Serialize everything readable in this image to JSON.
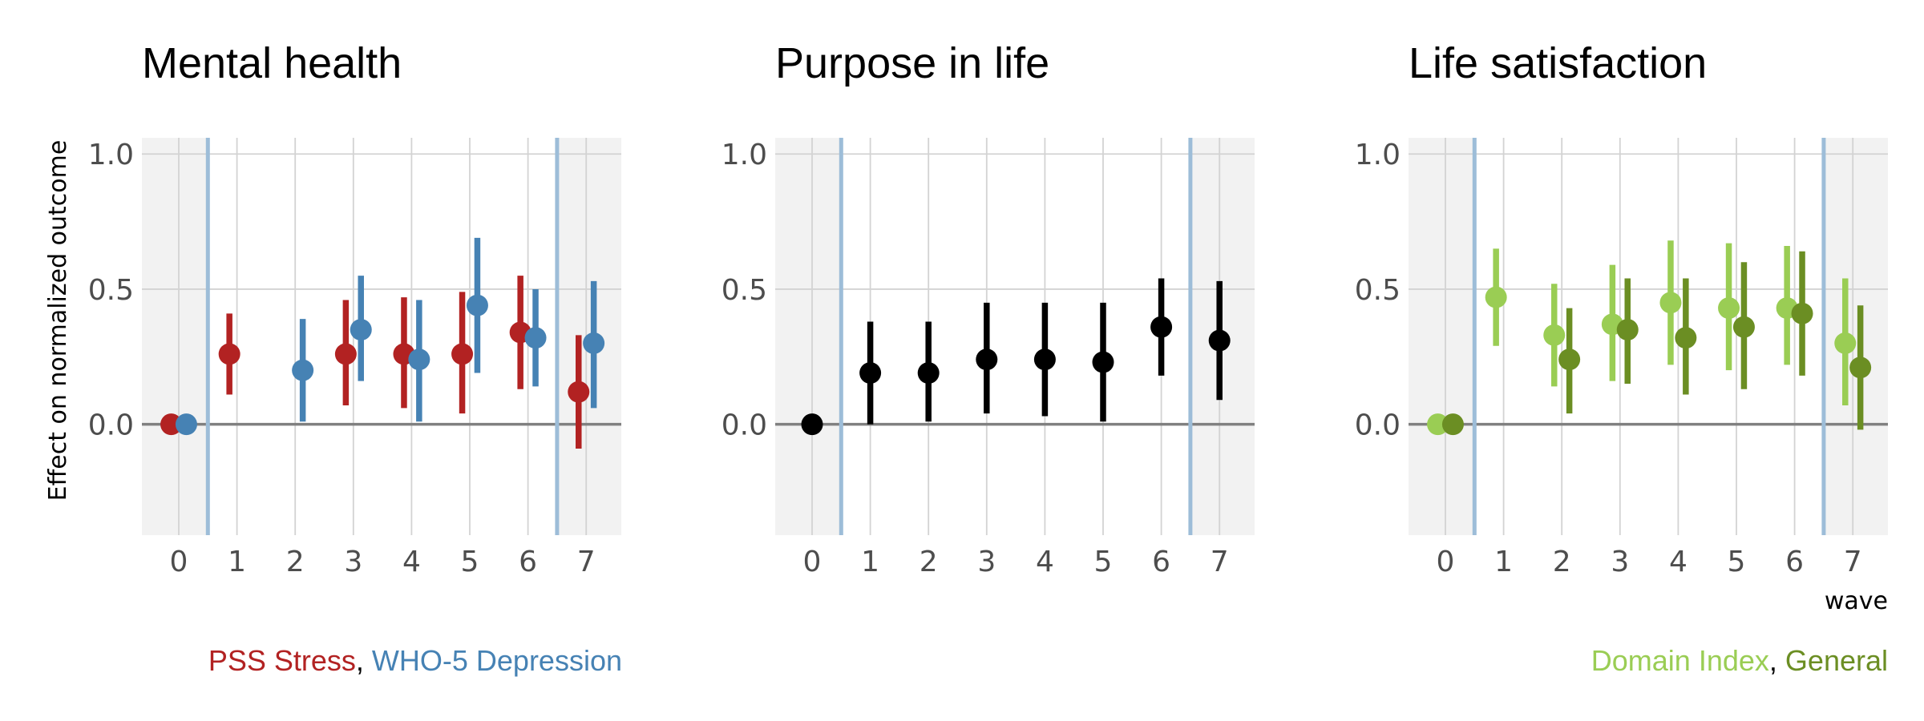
{
  "chart_data": [
    {
      "type": "scatter",
      "title": "Mental health",
      "ylabel": "Effect on normalized outcome",
      "xlabel": "",
      "x": [
        0,
        1,
        2,
        3,
        4,
        5,
        6,
        7
      ],
      "ylim": [
        -0.41,
        1.06
      ],
      "yticks": [
        0.0,
        0.5,
        1.0
      ],
      "ytick_labels": [
        "0.0",
        "0.5",
        "1.0"
      ],
      "grid": true,
      "treatment_window": [
        0.5,
        6.5
      ],
      "legend": {
        "position": "bottom",
        "items": [
          {
            "text": "PSS Stress",
            "color": "#B22222"
          },
          {
            "text": ", ",
            "color": "#000000"
          },
          {
            "text": "WHO-5 Depression",
            "color": "#4682B4"
          }
        ]
      },
      "series": [
        {
          "color": "#B22222",
          "dodge": -0.13,
          "points": [
            {
              "x": 0,
              "y": 0.0
            },
            {
              "x": 1,
              "y": 0.26,
              "lo": 0.11,
              "hi": 0.41
            },
            {
              "x": 3,
              "y": 0.26,
              "lo": 0.07,
              "hi": 0.46
            },
            {
              "x": 4,
              "y": 0.26,
              "lo": 0.06,
              "hi": 0.47
            },
            {
              "x": 5,
              "y": 0.26,
              "lo": 0.04,
              "hi": 0.49
            },
            {
              "x": 6,
              "y": 0.34,
              "lo": 0.13,
              "hi": 0.55
            },
            {
              "x": 7,
              "y": 0.12,
              "lo": -0.09,
              "hi": 0.33
            }
          ]
        },
        {
          "color": "#4682B4",
          "dodge": 0.13,
          "points": [
            {
              "x": 0,
              "y": 0.0
            },
            {
              "x": 2,
              "y": 0.2,
              "lo": 0.01,
              "hi": 0.39
            },
            {
              "x": 3,
              "y": 0.35,
              "lo": 0.16,
              "hi": 0.55
            },
            {
              "x": 4,
              "y": 0.24,
              "lo": 0.01,
              "hi": 0.46
            },
            {
              "x": 5,
              "y": 0.44,
              "lo": 0.19,
              "hi": 0.69
            },
            {
              "x": 6,
              "y": 0.32,
              "lo": 0.14,
              "hi": 0.5
            },
            {
              "x": 7,
              "y": 0.3,
              "lo": 0.06,
              "hi": 0.53
            }
          ]
        }
      ]
    },
    {
      "type": "scatter",
      "title": "Purpose in life",
      "ylabel": "",
      "xlabel": "",
      "x": [
        0,
        1,
        2,
        3,
        4,
        5,
        6,
        7
      ],
      "ylim": [
        -0.41,
        1.06
      ],
      "yticks": [
        0.0,
        0.5,
        1.0
      ],
      "ytick_labels": [
        "0.0",
        "0.5",
        "1.0"
      ],
      "grid": true,
      "treatment_window": [
        0.5,
        6.5
      ],
      "series": [
        {
          "color": "#000000",
          "dodge": 0.0,
          "points": [
            {
              "x": 0,
              "y": 0.0
            },
            {
              "x": 1,
              "y": 0.19,
              "lo": 0.0,
              "hi": 0.38
            },
            {
              "x": 2,
              "y": 0.19,
              "lo": 0.01,
              "hi": 0.38
            },
            {
              "x": 3,
              "y": 0.24,
              "lo": 0.04,
              "hi": 0.45
            },
            {
              "x": 4,
              "y": 0.24,
              "lo": 0.03,
              "hi": 0.45
            },
            {
              "x": 5,
              "y": 0.23,
              "lo": 0.01,
              "hi": 0.45
            },
            {
              "x": 6,
              "y": 0.36,
              "lo": 0.18,
              "hi": 0.54
            },
            {
              "x": 7,
              "y": 0.31,
              "lo": 0.09,
              "hi": 0.53
            }
          ]
        }
      ]
    },
    {
      "type": "scatter",
      "title": "Life satisfaction",
      "ylabel": "",
      "xlabel": "wave",
      "x": [
        0,
        1,
        2,
        3,
        4,
        5,
        6,
        7
      ],
      "ylim": [
        -0.41,
        1.06
      ],
      "yticks": [
        0.0,
        0.5,
        1.0
      ],
      "ytick_labels": [
        "0.0",
        "0.5",
        "1.0"
      ],
      "grid": true,
      "treatment_window": [
        0.5,
        6.5
      ],
      "legend": {
        "position": "bottom-right",
        "items": [
          {
            "text": "Domain Index",
            "color": "#9ACD54"
          },
          {
            "text": ", ",
            "color": "#000000"
          },
          {
            "text": "General",
            "color": "#6B8E23"
          }
        ]
      },
      "series": [
        {
          "color": "#9ACD54",
          "dodge": -0.13,
          "points": [
            {
              "x": 0,
              "y": 0.0
            },
            {
              "x": 1,
              "y": 0.47,
              "lo": 0.29,
              "hi": 0.65
            },
            {
              "x": 2,
              "y": 0.33,
              "lo": 0.14,
              "hi": 0.52
            },
            {
              "x": 3,
              "y": 0.37,
              "lo": 0.16,
              "hi": 0.59
            },
            {
              "x": 4,
              "y": 0.45,
              "lo": 0.22,
              "hi": 0.68
            },
            {
              "x": 5,
              "y": 0.43,
              "lo": 0.2,
              "hi": 0.67
            },
            {
              "x": 6,
              "y": 0.43,
              "lo": 0.22,
              "hi": 0.66
            },
            {
              "x": 7,
              "y": 0.3,
              "lo": 0.07,
              "hi": 0.54
            }
          ]
        },
        {
          "color": "#6B8E23",
          "dodge": 0.13,
          "points": [
            {
              "x": 0,
              "y": 0.0
            },
            {
              "x": 2,
              "y": 0.24,
              "lo": 0.04,
              "hi": 0.43
            },
            {
              "x": 3,
              "y": 0.35,
              "lo": 0.15,
              "hi": 0.54
            },
            {
              "x": 4,
              "y": 0.32,
              "lo": 0.11,
              "hi": 0.54
            },
            {
              "x": 5,
              "y": 0.36,
              "lo": 0.13,
              "hi": 0.6
            },
            {
              "x": 6,
              "y": 0.41,
              "lo": 0.18,
              "hi": 0.64
            },
            {
              "x": 7,
              "y": 0.21,
              "lo": -0.02,
              "hi": 0.44
            }
          ]
        }
      ]
    }
  ],
  "style": {
    "shade_color": "#F2F2F2",
    "grid_color": "#D3D3D3",
    "zero_line_color": "#808080",
    "treatment_line_color": "#9DBDD8"
  }
}
